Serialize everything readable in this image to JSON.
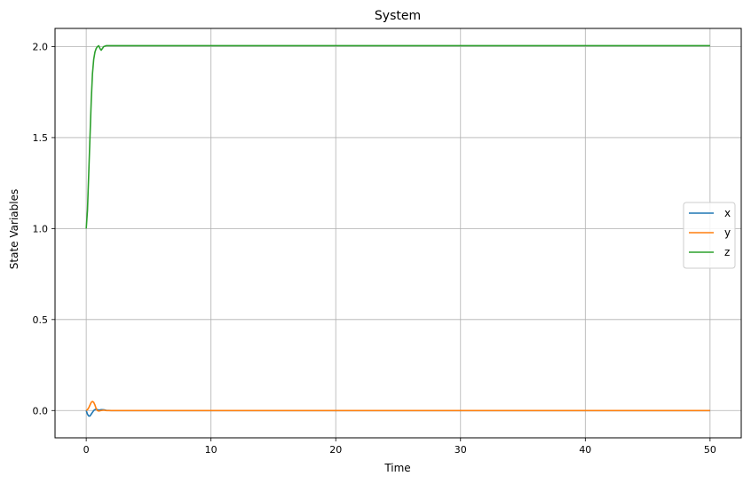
{
  "chart_data": {
    "type": "line",
    "title": "System",
    "xlabel": "Time",
    "ylabel": "State Variables",
    "xlim": [
      -2.5,
      52.5
    ],
    "ylim": [
      -0.15,
      2.1
    ],
    "xticks": [
      0,
      10,
      20,
      30,
      40,
      50
    ],
    "xtick_labels": [
      "0",
      "10",
      "20",
      "30",
      "40",
      "50"
    ],
    "yticks": [
      0.0,
      0.5,
      1.0,
      1.5,
      2.0
    ],
    "ytick_labels": [
      "0.0",
      "0.5",
      "1.0",
      "1.5",
      "2.0"
    ],
    "grid": true,
    "legend_position": "center-right",
    "series": [
      {
        "name": "x",
        "color": "#1f77b4",
        "x": [
          0,
          0.1,
          0.2,
          0.3,
          0.4,
          0.5,
          0.6,
          0.7,
          0.8,
          0.9,
          1.0,
          1.2,
          1.4,
          1.6,
          2.0,
          3.0,
          50
        ],
        "y": [
          0,
          -0.02,
          -0.03,
          -0.03,
          -0.02,
          -0.01,
          0.0,
          0.005,
          0.008,
          0.005,
          0.002,
          0.005,
          0.004,
          0.001,
          0.0,
          0.0,
          0.0
        ]
      },
      {
        "name": "y",
        "color": "#ff7f0e",
        "x": [
          0,
          0.1,
          0.2,
          0.3,
          0.4,
          0.5,
          0.6,
          0.7,
          0.8,
          0.9,
          1.0,
          1.2,
          1.4,
          1.6,
          2.0,
          3.0,
          50
        ],
        "y": [
          0,
          0.005,
          0.015,
          0.03,
          0.045,
          0.05,
          0.045,
          0.03,
          0.01,
          0.0,
          -0.003,
          0.0,
          0.002,
          0.0,
          0.0,
          0.0,
          0.0
        ]
      },
      {
        "name": "z",
        "color": "#2ca02c",
        "x": [
          0,
          0.1,
          0.2,
          0.3,
          0.4,
          0.5,
          0.6,
          0.7,
          0.8,
          0.9,
          1.0,
          1.1,
          1.2,
          1.3,
          1.4,
          1.6,
          2.0,
          3.0,
          50
        ],
        "y": [
          1.0,
          1.1,
          1.3,
          1.5,
          1.7,
          1.85,
          1.93,
          1.97,
          1.99,
          2.0,
          2.005,
          1.99,
          1.98,
          1.99,
          2.0,
          2.005,
          2.005,
          2.005,
          2.005
        ]
      }
    ]
  }
}
